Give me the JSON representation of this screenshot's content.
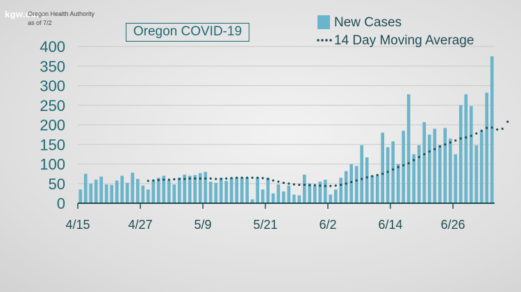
{
  "header": {
    "brand": "kgw.com",
    "source_line1": "Oregon Health Authority",
    "source_line2": "as of 7/2"
  },
  "chart_data": {
    "type": "bar",
    "title": "Oregon COVID-19",
    "start_date": "4/15",
    "x_tick_labels": [
      "4/15",
      "4/27",
      "5/9",
      "5/21",
      "6/2",
      "6/14",
      "6/26"
    ],
    "x_tick_positions": [
      0,
      12,
      24,
      36,
      48,
      60,
      72
    ],
    "y_ticks": [
      0,
      50,
      100,
      150,
      200,
      250,
      300,
      350,
      400
    ],
    "ylim": [
      0,
      400
    ],
    "xlabel": "",
    "ylabel": "",
    "legend_position": "top-right",
    "series": [
      {
        "name": "New Cases",
        "kind": "bar",
        "color": "#6ab5cb",
        "values": [
          35,
          75,
          50,
          60,
          68,
          48,
          47,
          58,
          70,
          52,
          78,
          62,
          45,
          35,
          58,
          65,
          70,
          58,
          48,
          65,
          73,
          70,
          72,
          77,
          80,
          55,
          52,
          65,
          57,
          65,
          65,
          65,
          65,
          10,
          65,
          35,
          65,
          25,
          48,
          30,
          45,
          22,
          20,
          73,
          50,
          45,
          55,
          60,
          22,
          35,
          65,
          82,
          100,
          95,
          148,
          117,
          70,
          70,
          180,
          143,
          158,
          100,
          185,
          278,
          125,
          148,
          207,
          175,
          190,
          148,
          192,
          165,
          125,
          250,
          278,
          248,
          148,
          185,
          282,
          375
        ]
      },
      {
        "name": "14 Day Moving Average",
        "kind": "dotted-line",
        "color": "#1e4d55",
        "start_index": 13,
        "values": [
          57,
          58,
          59,
          60,
          60,
          61,
          62,
          62,
          63,
          63,
          63,
          63,
          63,
          62,
          62,
          63,
          64,
          65,
          65,
          65,
          65,
          65,
          64,
          62,
          58,
          55,
          52,
          50,
          48,
          47,
          47,
          46,
          46,
          45,
          44,
          44,
          45,
          47,
          50,
          54,
          58,
          62,
          66,
          69,
          72,
          75,
          80,
          86,
          92,
          97,
          102,
          110,
          118,
          125,
          132,
          138,
          145,
          150,
          155,
          160,
          165,
          168,
          172,
          178,
          185,
          192,
          193,
          188,
          190,
          208
        ]
      }
    ]
  }
}
